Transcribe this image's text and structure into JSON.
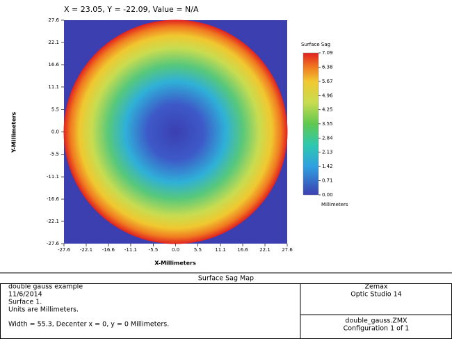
{
  "header": {
    "cursor": "X = 23.05, Y = -22.09, Value = N/A"
  },
  "chart_data": {
    "type": "heatmap",
    "xlabel": "X-Millimeters",
    "ylabel": "Y-Millimeters",
    "xlim": [
      -27.6,
      27.6
    ],
    "ylim": [
      -27.6,
      27.6
    ],
    "xticks": [
      -27.6,
      -22.1,
      -16.6,
      -11.1,
      -5.5,
      {
        "value": 0,
        "label": "0.0"
      },
      5.5,
      11.1,
      16.6,
      22.1,
      27.6
    ],
    "yticks": [
      -27.6,
      -22.1,
      -16.6,
      -11.1,
      -5.5,
      {
        "value": 0,
        "label": "0.0"
      },
      5.5,
      11.1,
      16.6,
      22.1,
      27.6
    ],
    "colorbar": {
      "title": "Surface Sag",
      "unit": "Millimeters",
      "lim": [
        0,
        7.09
      ],
      "ticks": [
        {
          "value": 0,
          "label": "0.00"
        },
        0.71,
        1.42,
        2.13,
        2.84,
        3.55,
        4.25,
        4.96,
        5.67,
        6.38,
        7.09
      ]
    }
  },
  "footer": {
    "title": "Surface Sag Map",
    "left": [
      "double gauss example",
      "11/6/2014",
      "Surface 1.",
      "Units are Millimeters."
    ],
    "note": "Width = 55.3, Decenter x = 0, y = 0 Millimeters.",
    "right_top": [
      "Zemax",
      "Optic Studio 14"
    ],
    "right_bottom": [
      "double_gauss.ZMX",
      "Configuration 1 of 1"
    ]
  }
}
